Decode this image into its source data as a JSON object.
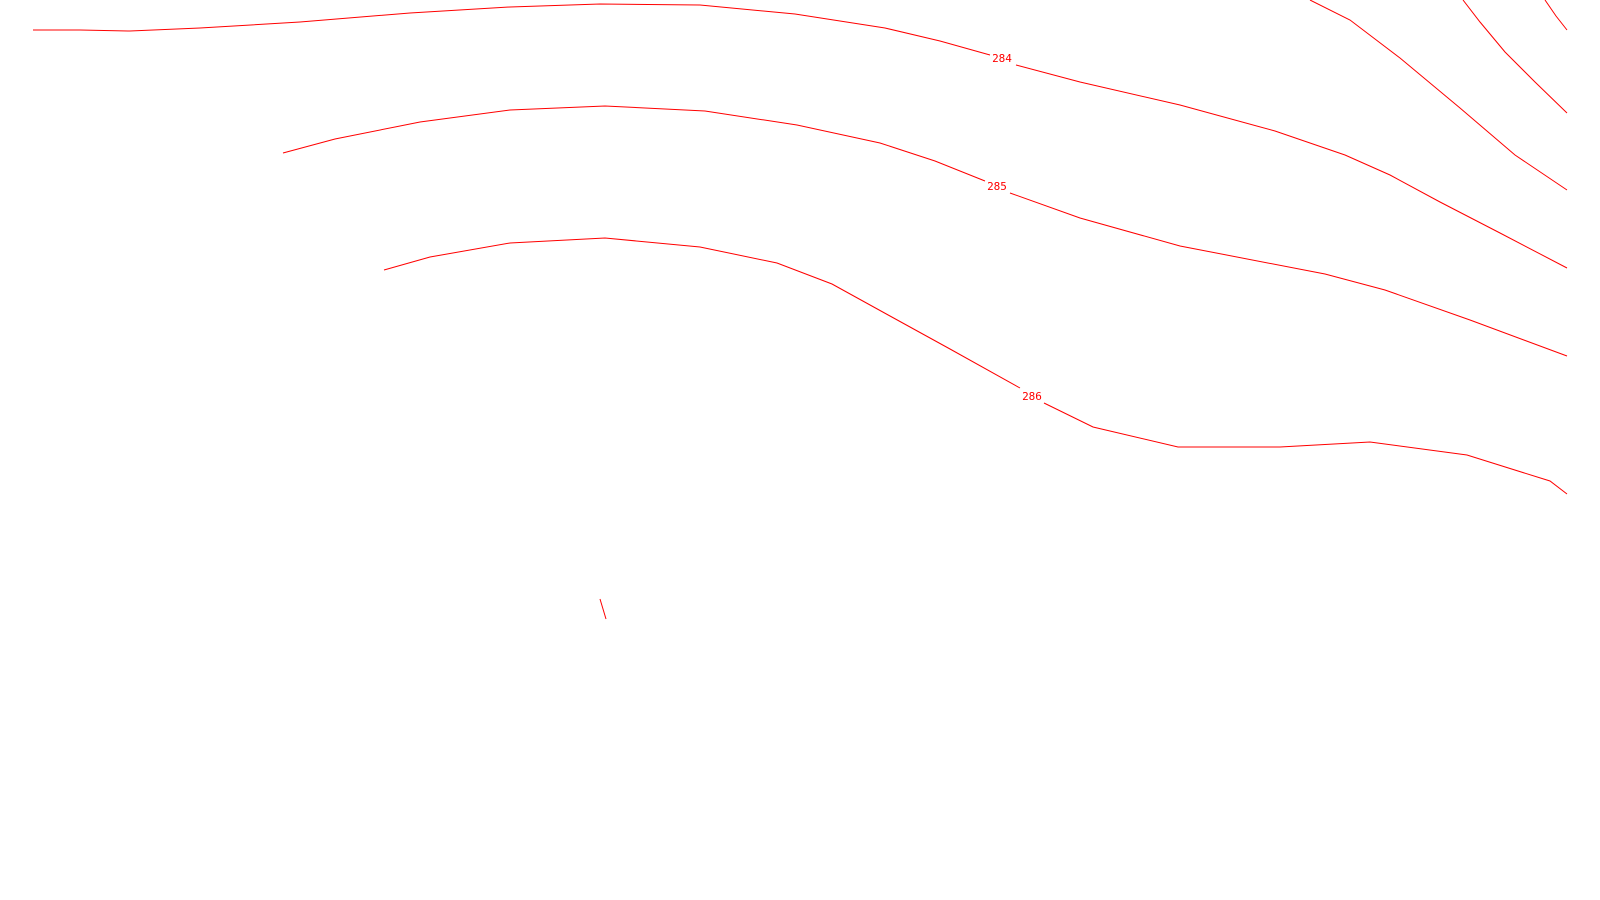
{
  "map": {
    "line_color": "#ff0000",
    "background": "#ffffff",
    "contour_labels": {
      "c284": "284",
      "c285": "285",
      "c286": "286"
    }
  }
}
